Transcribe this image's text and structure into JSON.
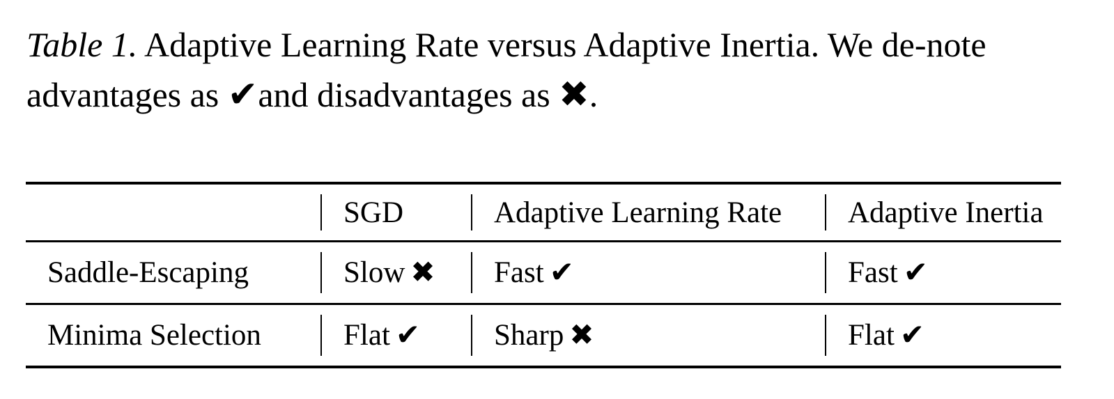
{
  "caption": {
    "label": "Table 1.",
    "text_before": " Adaptive Learning Rate versus Adaptive Inertia. We de-note advantages as ",
    "advantage_symbol": "✔",
    "text_middle": "and disadvantages as ",
    "disadvantage_symbol": "✖",
    "text_after": "."
  },
  "table": {
    "headers": [
      "",
      "SGD",
      "Adaptive Learning Rate",
      "Adaptive Inertia"
    ],
    "rows": [
      {
        "label": "Saddle-Escaping",
        "cells": [
          {
            "text": "Slow",
            "mark": "✖"
          },
          {
            "text": "Fast",
            "mark": "✔"
          },
          {
            "text": "Fast",
            "mark": "✔"
          }
        ]
      },
      {
        "label": "Minima Selection",
        "cells": [
          {
            "text": "Flat",
            "mark": "✔"
          },
          {
            "text": "Sharp",
            "mark": "✖"
          },
          {
            "text": "Flat",
            "mark": "✔"
          }
        ]
      }
    ]
  }
}
